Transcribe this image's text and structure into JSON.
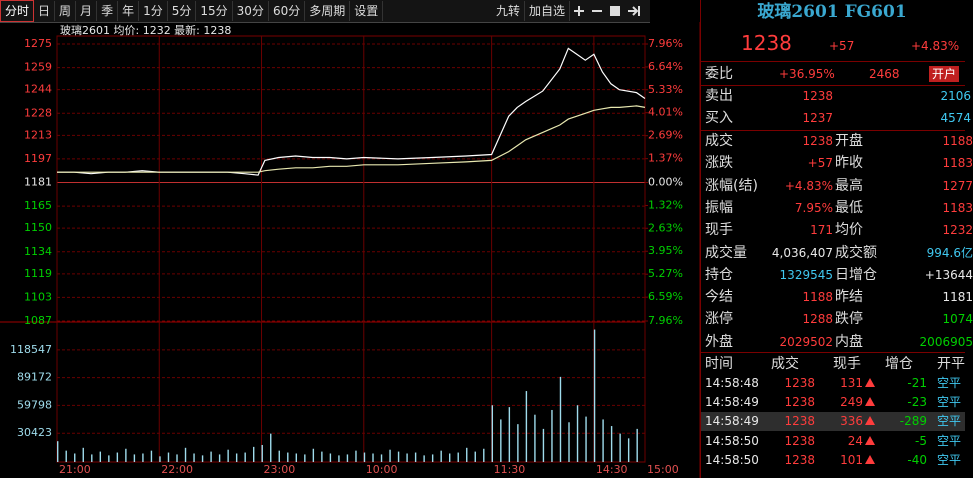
{
  "toolbar": {
    "periods": [
      "分时",
      "日",
      "周",
      "月",
      "季",
      "年",
      "1分",
      "5分",
      "15分",
      "30分",
      "60分",
      "多周期",
      "设置"
    ],
    "actions": [
      "九转",
      "加自选"
    ]
  },
  "chart_data": [
    {
      "type": "line",
      "subtitle": "玻璃2601 均价: 1232 最新: 1238",
      "x": [
        0,
        10,
        20,
        30,
        40,
        50,
        60,
        70,
        80,
        90,
        100,
        110,
        118,
        122,
        130,
        140,
        150,
        160,
        170,
        180,
        200,
        220,
        240,
        255,
        265,
        270,
        275,
        285,
        295,
        300,
        305,
        310,
        315,
        320,
        325,
        330,
        340,
        345
      ],
      "series": [
        {
          "color": "#ffffff",
          "values": [
            1188,
            1188,
            1187,
            1188,
            1188,
            1189,
            1188,
            1188,
            1188,
            1188,
            1188,
            1187,
            1186,
            1196,
            1198,
            1199,
            1198,
            1198,
            1197,
            1198,
            1197,
            1198,
            1199,
            1200,
            1226,
            1232,
            1236,
            1243,
            1258,
            1272,
            1268,
            1264,
            1268,
            1256,
            1248,
            1244,
            1242,
            1238
          ]
        },
        {
          "color": "#e8e8b0",
          "values": [
            1188,
            1188,
            1188,
            1188,
            1188,
            1188,
            1188,
            1188,
            1188,
            1188,
            1188,
            1188,
            1188,
            1189,
            1190,
            1191,
            1191,
            1192,
            1192,
            1193,
            1193,
            1194,
            1195,
            1196,
            1202,
            1206,
            1210,
            1215,
            1220,
            1224,
            1226,
            1228,
            1230,
            1231,
            1232,
            1232,
            1233,
            1232
          ]
        }
      ],
      "xlim": [
        0,
        345
      ],
      "xticks": [
        {
          "value": 0,
          "label": "21:00"
        },
        {
          "value": 60,
          "label": "22:00"
        },
        {
          "value": 120,
          "label": "23:00"
        },
        {
          "value": 180,
          "label": "10:00"
        },
        {
          "value": 255,
          "label": "11:30"
        },
        {
          "value": 315,
          "label": "14:30"
        },
        {
          "value": 345,
          "label": "15:00"
        }
      ],
      "ylim": [
        1087,
        1275
      ],
      "yticks": [
        1275,
        1259,
        1244,
        1228,
        1213,
        1197,
        1181,
        1165,
        1150,
        1134,
        1119,
        1103,
        1087
      ],
      "y2lim": [
        -7.96,
        7.96
      ],
      "y2ticks": [
        {
          "value": 7.96,
          "label": "7.96%"
        },
        {
          "value": 6.64,
          "label": "6.64%"
        },
        {
          "value": 5.33,
          "label": "5.33%"
        },
        {
          "value": 4.01,
          "label": "4.01%"
        },
        {
          "value": 2.69,
          "label": "2.69%"
        },
        {
          "value": 1.37,
          "label": "1.37%"
        },
        {
          "value": 0,
          "label": "0.00%"
        },
        {
          "value": -1.32,
          "label": "1.32%"
        },
        {
          "value": -2.63,
          "label": "2.63%"
        },
        {
          "value": -3.95,
          "label": "3.95%"
        },
        {
          "value": -5.27,
          "label": "5.27%"
        },
        {
          "value": -6.59,
          "label": "6.59%"
        },
        {
          "value": -7.96,
          "label": "7.96%"
        }
      ],
      "grid": true
    },
    {
      "type": "bar",
      "color": "#9fdcec",
      "x": [
        0,
        5,
        10,
        15,
        20,
        25,
        30,
        35,
        40,
        45,
        50,
        55,
        60,
        65,
        70,
        75,
        80,
        85,
        90,
        95,
        100,
        105,
        110,
        115,
        120,
        125,
        130,
        135,
        140,
        145,
        150,
        155,
        160,
        165,
        170,
        175,
        180,
        185,
        190,
        195,
        200,
        205,
        210,
        215,
        220,
        225,
        230,
        235,
        240,
        245,
        250,
        255,
        260,
        265,
        270,
        275,
        280,
        285,
        290,
        295,
        300,
        305,
        310,
        315,
        320,
        325,
        330,
        335,
        340
      ],
      "values": [
        22000,
        12000,
        9000,
        15000,
        8000,
        11000,
        7000,
        10000,
        14000,
        8000,
        9000,
        12000,
        6000,
        10000,
        8000,
        15000,
        9000,
        7000,
        11000,
        8000,
        13000,
        9000,
        10000,
        16000,
        18000,
        30000,
        12000,
        10000,
        9000,
        8000,
        14000,
        11000,
        9000,
        7000,
        8000,
        12000,
        10000,
        9000,
        8000,
        13000,
        11000,
        9000,
        10000,
        7000,
        8000,
        12000,
        9000,
        10000,
        15000,
        11000,
        14000,
        60000,
        45000,
        58000,
        40000,
        75000,
        50000,
        35000,
        55000,
        90000,
        42000,
        60000,
        48000,
        140000,
        45000,
        38000,
        30000,
        25000,
        35000
      ],
      "xlim": [
        0,
        345
      ],
      "ylim": [
        0,
        148000
      ],
      "yticks": [
        118547,
        89172,
        59798,
        30423
      ],
      "grid": true
    }
  ],
  "quote": {
    "title": "玻璃2601 FG601",
    "last": "1238",
    "change": "+57",
    "change_pct": "+4.83%",
    "weibi_label": "委比",
    "weibi_pct": "+36.95%",
    "weibi_diff": "2468",
    "open_account": "开户",
    "book": [
      {
        "label": "卖出",
        "price": "1238",
        "volume": "2106"
      },
      {
        "label": "买入",
        "price": "1237",
        "volume": "4574"
      }
    ],
    "stats": [
      [
        "成交",
        "1238",
        "开盘",
        "1188"
      ],
      [
        "涨跌",
        "+57",
        "昨收",
        "1183"
      ],
      [
        "涨幅(结)",
        "+4.83%",
        "最高",
        "1277"
      ],
      [
        "振幅",
        "7.95%",
        "最低",
        "1183"
      ],
      [
        "现手",
        "171",
        "均价",
        "1232"
      ],
      [
        "成交量",
        "4,036,407",
        "成交额",
        "994.6亿"
      ],
      [
        "持仓",
        "1329545",
        "日增仓",
        "+13644"
      ],
      [
        "今结",
        "1188",
        "昨结",
        "1181"
      ],
      [
        "涨停",
        "1288",
        "跌停",
        "1074"
      ],
      [
        "外盘",
        "2029502",
        "内盘",
        "2006905"
      ]
    ]
  },
  "trades": {
    "header": [
      "时间",
      "成交",
      "现手",
      "增仓",
      "开平"
    ],
    "rows": [
      [
        "14:58:48",
        "1238",
        "131",
        "-21",
        "空平"
      ],
      [
        "14:58:49",
        "1238",
        "249",
        "-23",
        "空平"
      ],
      [
        "14:58:49",
        "1238",
        "336",
        "-289",
        "空平"
      ],
      [
        "14:58:50",
        "1238",
        "24",
        "-5",
        "空平"
      ],
      [
        "14:58:50",
        "1238",
        "101",
        "-40",
        "空平"
      ]
    ]
  }
}
